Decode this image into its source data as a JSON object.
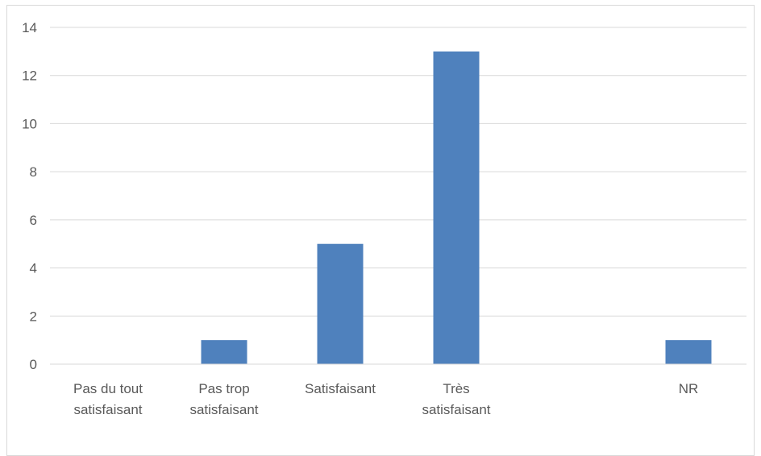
{
  "chart_data": {
    "type": "bar",
    "categories": [
      "Pas du tout satisfaisant",
      "Pas trop satisfaisant",
      "Satisfaisant",
      "Très satisfaisant",
      "",
      "NR"
    ],
    "category_label_lines": [
      [
        "Pas du tout",
        "satisfaisant"
      ],
      [
        "Pas trop",
        "satisfaisant"
      ],
      [
        "Satisfaisant"
      ],
      [
        "Très",
        "satisfaisant"
      ],
      [],
      [
        "NR"
      ]
    ],
    "values": [
      0,
      1,
      5,
      13,
      0,
      1
    ],
    "ylim": [
      0,
      14
    ],
    "y_ticks": [
      0,
      2,
      4,
      6,
      8,
      10,
      12,
      14
    ],
    "grid": true,
    "legend": "none",
    "title": "",
    "xlabel": "",
    "ylabel": "",
    "colors": {
      "bar": "#4F81BD",
      "grid": "#D9D9D9",
      "text": "#595959",
      "frame": "#D9D9D9"
    }
  }
}
